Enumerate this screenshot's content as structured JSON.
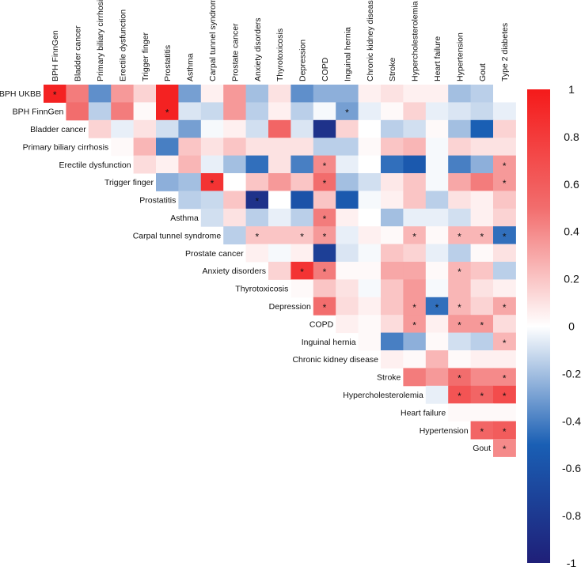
{
  "chart_data": {
    "type": "heatmap",
    "title": "",
    "layout": "upper-triangle correlation matrix with significance asterisks",
    "columns": [
      "BPH FinnGen",
      "Bladder cancer",
      "Primary biliary cirrhosis",
      "Erectile dysfunction",
      "Trigger finger",
      "Prostatitis",
      "Asthma",
      "Carpal tunnel syndrome",
      "Prostate cancer",
      "Anxiety disorders",
      "Thyrotoxicosis",
      "Depression",
      "COPD",
      "Inguinal hernia",
      "Chronic kidney disease",
      "Stroke",
      "Hypercholesterolemia",
      "Heart failure",
      "Hypertension",
      "Gout",
      "Type 2 diabetes"
    ],
    "rows": [
      "BPH UKBB",
      "BPH FinnGen",
      "Bladder cancer",
      "Primary biliary cirrhosis",
      "Erectile dysfunction",
      "Trigger finger",
      "Prostatitis",
      "Asthma",
      "Carpal tunnel syndrome",
      "Prostate cancer",
      "Anxiety disorders",
      "Thyrotoxicosis",
      "Depression",
      "COPD",
      "Inguinal hernia",
      "Chronic kidney disease",
      "Stroke",
      "Hypercholesterolemia",
      "Heart failure",
      "Hypertension",
      "Gout"
    ],
    "values": [
      [
        0.95,
        0.45,
        -0.35,
        0.35,
        0.15,
        0.95,
        -0.3,
        0.05,
        0.35,
        -0.2,
        0.1,
        -0.35,
        -0.25,
        -0.25,
        0.05,
        0.1,
        0.05,
        0.05,
        -0.2,
        -0.15,
        0.0
      ],
      [
        null,
        0.5,
        -0.15,
        0.45,
        0.02,
        0.95,
        -0.08,
        -0.12,
        0.35,
        -0.15,
        0.05,
        -0.15,
        -0.02,
        -0.3,
        -0.05,
        0.02,
        0.15,
        -0.05,
        -0.08,
        -0.12,
        -0.05
      ],
      [
        null,
        null,
        0.15,
        -0.05,
        0.1,
        -0.1,
        -0.3,
        -0.02,
        0.05,
        -0.1,
        0.55,
        -0.08,
        -0.85,
        0.15,
        0.0,
        -0.15,
        -0.1,
        0.02,
        -0.2,
        -0.5,
        0.15
      ],
      [
        null,
        null,
        null,
        0.02,
        0.25,
        -0.4,
        0.2,
        0.1,
        0.2,
        0.1,
        0.1,
        0.1,
        -0.15,
        -0.15,
        0.02,
        0.2,
        0.25,
        -0.02,
        0.15,
        0.1,
        0.1
      ],
      [
        null,
        null,
        null,
        null,
        0.12,
        0.05,
        0.25,
        -0.05,
        -0.2,
        -0.45,
        0.1,
        -0.4,
        0.4,
        -0.05,
        0.0,
        -0.45,
        -0.55,
        -0.02,
        -0.4,
        -0.25,
        0.35
      ],
      [
        null,
        null,
        null,
        null,
        null,
        -0.25,
        -0.2,
        0.85,
        0.0,
        0.2,
        0.35,
        0.2,
        0.5,
        -0.2,
        -0.1,
        0.08,
        0.2,
        -0.02,
        0.3,
        0.45,
        0.35
      ],
      [
        null,
        null,
        null,
        null,
        null,
        null,
        -0.15,
        -0.12,
        0.2,
        -0.85,
        0.0,
        -0.6,
        0.2,
        -0.55,
        -0.02,
        0.05,
        0.2,
        -0.15,
        0.1,
        0.05,
        0.2
      ],
      [
        null,
        null,
        null,
        null,
        null,
        null,
        null,
        -0.1,
        0.1,
        -0.15,
        -0.05,
        -0.15,
        0.45,
        0.05,
        0.0,
        -0.2,
        -0.05,
        -0.05,
        -0.1,
        0.05,
        0.15
      ],
      [
        null,
        null,
        null,
        null,
        null,
        null,
        null,
        null,
        -0.15,
        0.2,
        0.2,
        0.2,
        0.35,
        -0.05,
        0.05,
        0.02,
        0.25,
        0.02,
        0.25,
        0.25,
        -0.45
      ],
      [
        null,
        null,
        null,
        null,
        null,
        null,
        null,
        null,
        null,
        0.05,
        -0.02,
        0.05,
        -0.75,
        -0.08,
        -0.02,
        0.2,
        0.15,
        -0.05,
        -0.15,
        0.02,
        0.1
      ],
      [
        null,
        null,
        null,
        null,
        null,
        null,
        null,
        null,
        null,
        null,
        0.15,
        0.85,
        0.45,
        0.02,
        0.02,
        0.3,
        0.3,
        0.02,
        0.25,
        0.2,
        -0.15
      ],
      [
        null,
        null,
        null,
        null,
        null,
        null,
        null,
        null,
        null,
        null,
        null,
        0.02,
        0.2,
        0.1,
        -0.02,
        0.2,
        0.35,
        -0.02,
        0.25,
        0.1,
        0.05
      ],
      [
        null,
        null,
        null,
        null,
        null,
        null,
        null,
        null,
        null,
        null,
        null,
        null,
        0.5,
        0.12,
        0.05,
        0.2,
        0.35,
        -0.45,
        0.25,
        0.15,
        0.3
      ],
      [
        null,
        null,
        null,
        null,
        null,
        null,
        null,
        null,
        null,
        null,
        null,
        null,
        null,
        0.05,
        0.02,
        0.12,
        0.35,
        0.05,
        0.35,
        0.35,
        0.12
      ],
      [
        null,
        null,
        null,
        null,
        null,
        null,
        null,
        null,
        null,
        null,
        null,
        null,
        null,
        null,
        0.02,
        -0.4,
        -0.25,
        0.02,
        -0.1,
        -0.15,
        0.25
      ],
      [
        null,
        null,
        null,
        null,
        null,
        null,
        null,
        null,
        null,
        null,
        null,
        null,
        null,
        null,
        null,
        0.05,
        0.02,
        0.25,
        0.02,
        0.05,
        0.05
      ],
      [
        null,
        null,
        null,
        null,
        null,
        null,
        null,
        null,
        null,
        null,
        null,
        null,
        null,
        null,
        null,
        null,
        0.45,
        0.35,
        0.5,
        0.4,
        0.4
      ],
      [
        null,
        null,
        null,
        null,
        null,
        null,
        null,
        null,
        null,
        null,
        null,
        null,
        null,
        null,
        null,
        null,
        null,
        -0.05,
        0.65,
        0.55,
        0.7
      ],
      [
        null,
        null,
        null,
        null,
        null,
        null,
        null,
        null,
        null,
        null,
        null,
        null,
        null,
        null,
        null,
        null,
        null,
        null,
        0.02,
        0.02,
        0.02
      ],
      [
        null,
        null,
        null,
        null,
        null,
        null,
        null,
        null,
        null,
        null,
        null,
        null,
        null,
        null,
        null,
        null,
        null,
        null,
        null,
        0.55,
        0.6
      ],
      [
        null,
        null,
        null,
        null,
        null,
        null,
        null,
        null,
        null,
        null,
        null,
        null,
        null,
        null,
        null,
        null,
        null,
        null,
        null,
        null,
        0.4
      ]
    ],
    "significant": [
      [
        0,
        0
      ],
      [
        1,
        5
      ],
      [
        1,
        13
      ],
      [
        4,
        12
      ],
      [
        4,
        20
      ],
      [
        5,
        7
      ],
      [
        5,
        12
      ],
      [
        5,
        20
      ],
      [
        6,
        9
      ],
      [
        7,
        12
      ],
      [
        8,
        9
      ],
      [
        8,
        11
      ],
      [
        8,
        12
      ],
      [
        8,
        16
      ],
      [
        8,
        18
      ],
      [
        8,
        19
      ],
      [
        8,
        20
      ],
      [
        10,
        11
      ],
      [
        10,
        12
      ],
      [
        10,
        18
      ],
      [
        12,
        12
      ],
      [
        12,
        16
      ],
      [
        12,
        17
      ],
      [
        12,
        18
      ],
      [
        12,
        20
      ],
      [
        13,
        16
      ],
      [
        13,
        18
      ],
      [
        13,
        19
      ],
      [
        14,
        20
      ],
      [
        16,
        18
      ],
      [
        16,
        20
      ],
      [
        17,
        18
      ],
      [
        17,
        19
      ],
      [
        17,
        20
      ],
      [
        19,
        19
      ],
      [
        19,
        20
      ],
      [
        20,
        20
      ]
    ],
    "significance_marker": "*",
    "colorbar": {
      "range": [
        -1,
        1
      ],
      "ticks": [
        "1",
        "0.8",
        "0.6",
        "0.4",
        "0.2",
        "0",
        "-0.2",
        "-0.4",
        "-0.6",
        "-0.8",
        "-1"
      ],
      "low_color": "#1f1f78",
      "mid_low_color": "#1a5fb4",
      "neutral_color": "#ffffff",
      "mid_high_color": "#f26d6d",
      "high_color": "#f41a1a"
    }
  }
}
